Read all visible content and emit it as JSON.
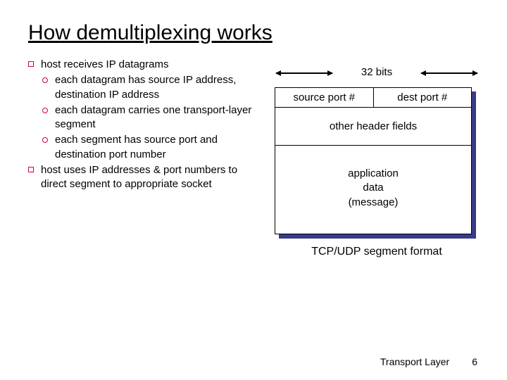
{
  "title": "How demultiplexing works",
  "bullets": {
    "b1": "host receives IP datagrams",
    "b1a": "each datagram has source IP address, destination IP address",
    "b1b": "each datagram carries one transport-layer segment",
    "b1c": "each segment has source port and destination port number",
    "b2": "host uses IP addresses & port numbers to direct segment to appropriate socket"
  },
  "diagram": {
    "bits_label": "32 bits",
    "row1_left": "source port #",
    "row1_right": "dest port #",
    "row2": "other header fields",
    "row3": "application\ndata\n(message)",
    "caption": "TCP/UDP segment format",
    "shadow_color": "#3a3a8a",
    "border_color": "#000000",
    "bg_color": "#ffffff"
  },
  "footer": {
    "label": "Transport Layer",
    "page": "6"
  },
  "colors": {
    "bullet_outline": "#d00030",
    "text": "#000000"
  }
}
